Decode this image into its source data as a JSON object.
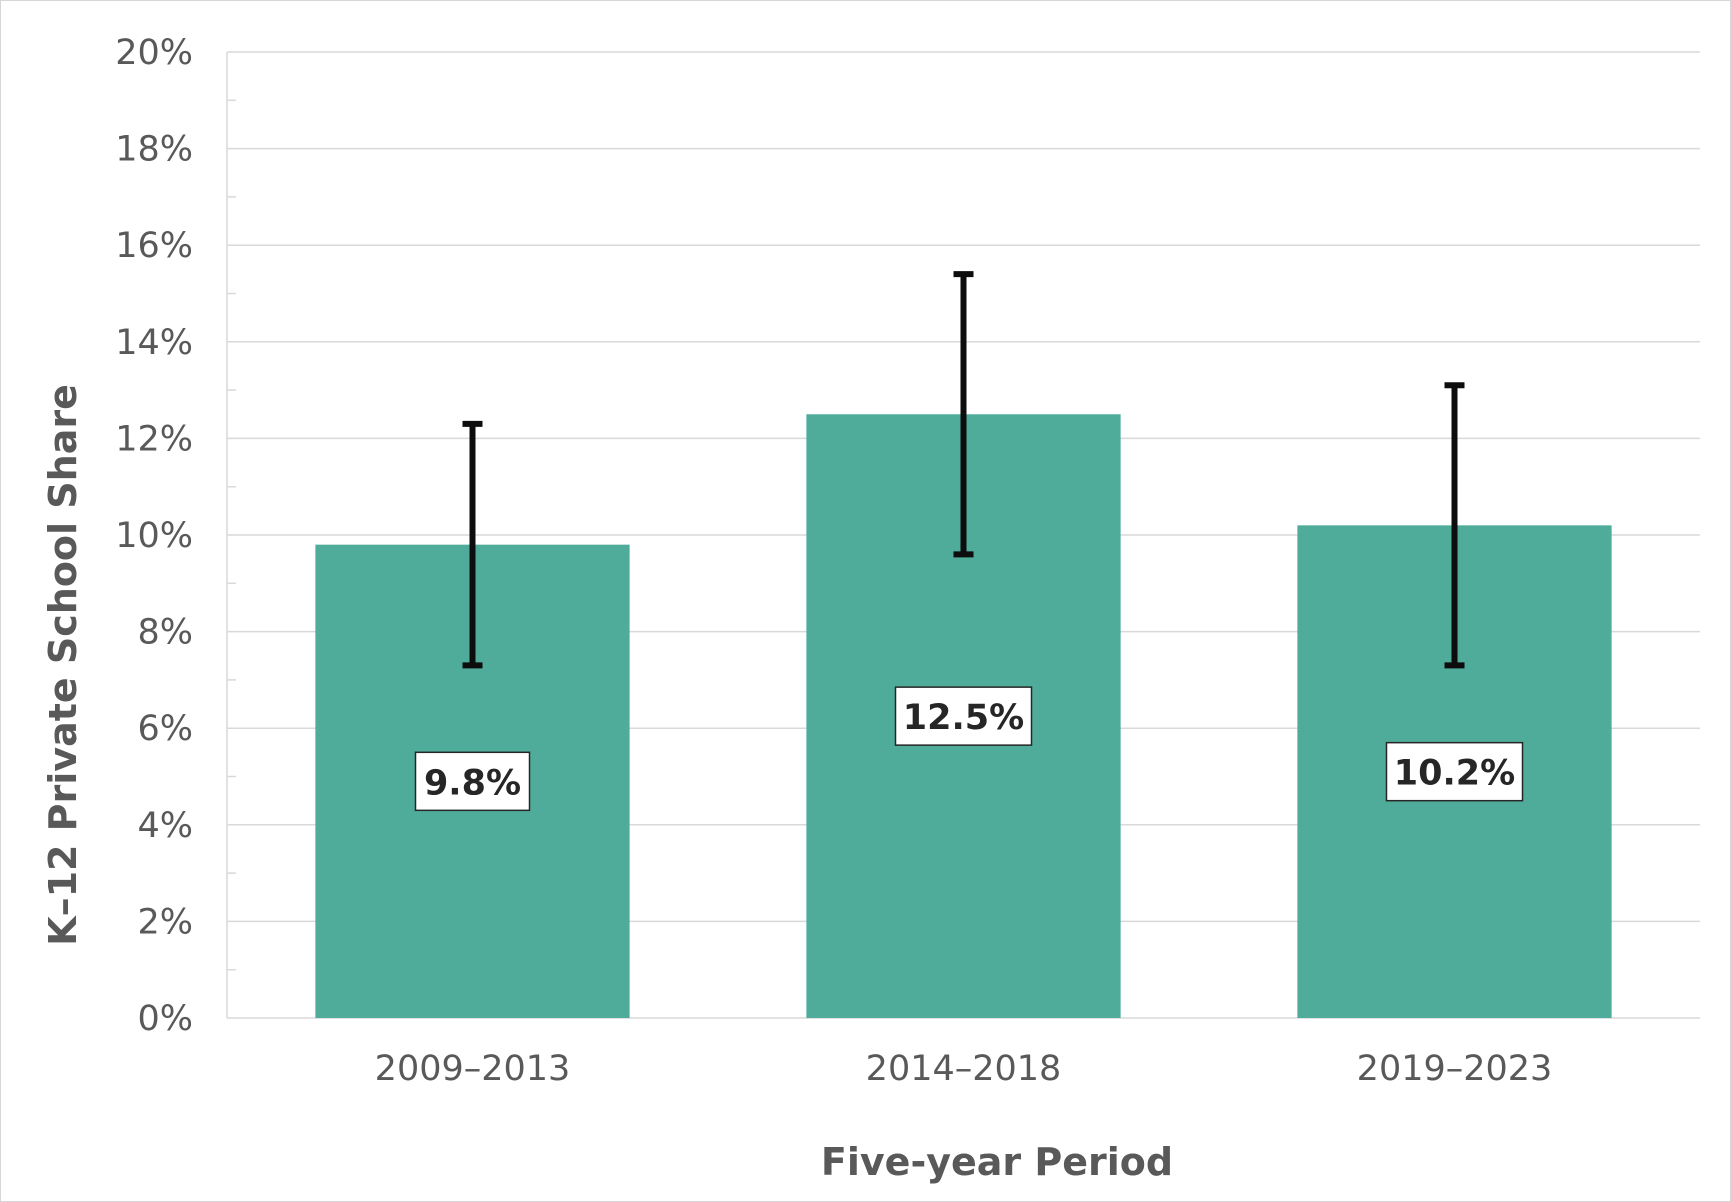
{
  "chart_data": {
    "type": "bar",
    "title": "",
    "xlabel": "Five-year Period",
    "ylabel": "K–12 Private School Share",
    "categories": [
      "2009–2013",
      "2014–2018",
      "2019–2023"
    ],
    "values": [
      9.8,
      12.5,
      10.2
    ],
    "value_labels": [
      "9.8%",
      "12.5%",
      "10.2%"
    ],
    "error_bars": [
      {
        "low": 7.3,
        "high": 12.3
      },
      {
        "low": 9.6,
        "high": 15.4
      },
      {
        "low": 7.3,
        "high": 13.1
      }
    ],
    "ylim": [
      0,
      20
    ],
    "y_ticks": [
      0,
      2,
      4,
      6,
      8,
      10,
      12,
      14,
      16,
      18,
      20
    ],
    "y_tick_labels": [
      "0%",
      "2%",
      "4%",
      "6%",
      "8%",
      "10%",
      "12%",
      "14%",
      "16%",
      "18%",
      "20%"
    ],
    "grid": true,
    "colors": {
      "bar": "#4fab9a",
      "error_bar": "#0d0d0d",
      "grid": "#d9d9d9",
      "text": "#595959"
    }
  }
}
